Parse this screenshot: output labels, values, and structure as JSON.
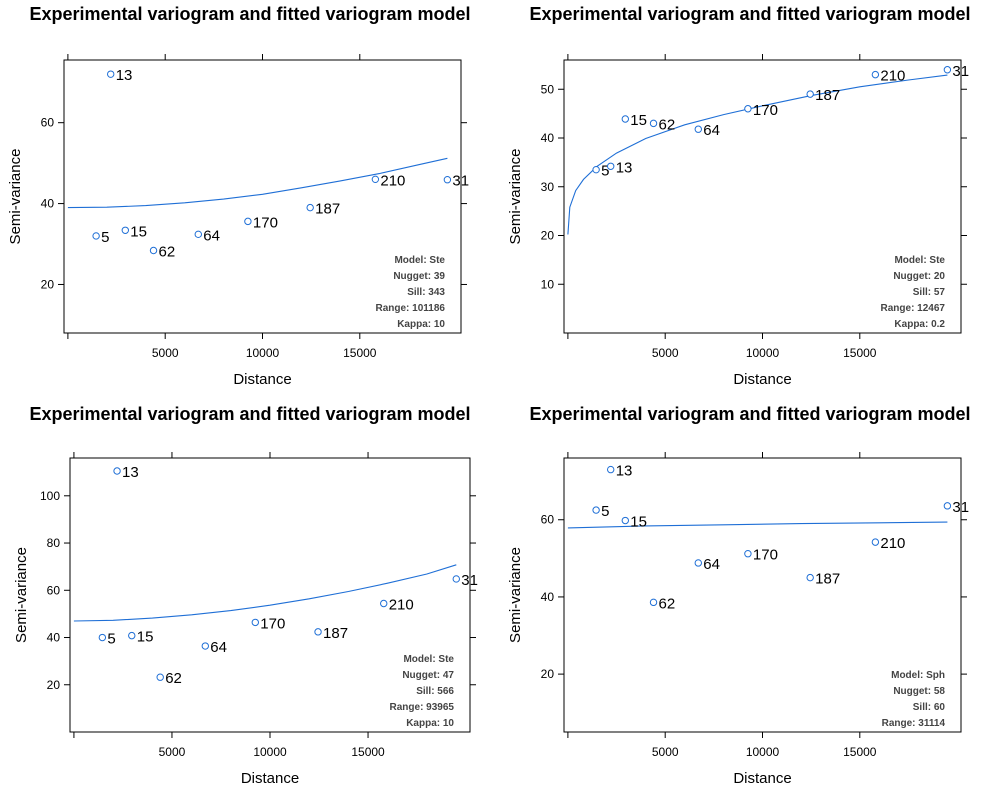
{
  "chart_data": [
    {
      "type": "scatter",
      "title": "Experimental variogram and fitted variogram model",
      "xlabel": "Distance",
      "ylabel": "Semi-variance",
      "xlim": [
        -200,
        20200
      ],
      "ylim": [
        8,
        75.5
      ],
      "xticks": [
        5000,
        10000,
        15000
      ],
      "yticks": [
        20,
        40,
        60
      ],
      "points": [
        {
          "x": 1450,
          "y": 32.0,
          "label": "5"
        },
        {
          "x": 2200,
          "y": 72.0,
          "label": "13"
        },
        {
          "x": 2950,
          "y": 33.4,
          "label": "15"
        },
        {
          "x": 4400,
          "y": 28.4,
          "label": "62"
        },
        {
          "x": 6700,
          "y": 32.4,
          "label": "64"
        },
        {
          "x": 9250,
          "y": 35.6,
          "label": "170"
        },
        {
          "x": 12450,
          "y": 39.0,
          "label": "187"
        },
        {
          "x": 15800,
          "y": 46.0,
          "label": "210"
        },
        {
          "x": 19500,
          "y": 45.9,
          "label": "31"
        }
      ],
      "fitted_curve": {
        "x": [
          1,
          2000,
          4000,
          6000,
          8000,
          10000,
          12000,
          14000,
          16000,
          18000,
          19500
        ],
        "y": [
          39.0,
          39.1,
          39.5,
          40.2,
          41.1,
          42.3,
          43.9,
          45.6,
          47.4,
          49.6,
          51.2
        ]
      },
      "annotations": [
        "Model: Ste",
        "Nugget: 39",
        "Sill: 343",
        "Range: 101186",
        "Kappa: 10"
      ]
    },
    {
      "type": "scatter",
      "title": "Experimental variogram and fitted variogram model",
      "xlabel": "Distance",
      "ylabel": "Semi-variance",
      "xlim": [
        -200,
        20200
      ],
      "ylim": [
        0,
        56
      ],
      "xticks": [
        5000,
        10000,
        15000
      ],
      "yticks": [
        10,
        20,
        30,
        40,
        50
      ],
      "points": [
        {
          "x": 1450,
          "y": 33.5,
          "label": "5"
        },
        {
          "x": 2200,
          "y": 34.2,
          "label": "13"
        },
        {
          "x": 2950,
          "y": 43.9,
          "label": "15"
        },
        {
          "x": 4400,
          "y": 43.0,
          "label": "62"
        },
        {
          "x": 6700,
          "y": 41.8,
          "label": "64"
        },
        {
          "x": 9250,
          "y": 46.0,
          "label": "170"
        },
        {
          "x": 12450,
          "y": 49.0,
          "label": "187"
        },
        {
          "x": 15800,
          "y": 53.0,
          "label": "210"
        },
        {
          "x": 19500,
          "y": 54.0,
          "label": "31"
        }
      ],
      "fitted_curve": {
        "x": [
          1,
          100,
          400,
          800,
          1500,
          2500,
          4000,
          6000,
          8000,
          10000,
          12500,
          15000,
          17500,
          19500
        ],
        "y": [
          20.2,
          25.8,
          29.2,
          31.5,
          34.2,
          36.9,
          39.9,
          42.7,
          44.8,
          46.6,
          48.7,
          50.5,
          51.9,
          52.9
        ]
      },
      "annotations": [
        "Model: Ste",
        "Nugget: 20",
        "Sill: 57",
        "Range: 12467",
        "Kappa: 0.2"
      ]
    },
    {
      "type": "scatter",
      "title": "Experimental variogram and fitted variogram model",
      "xlabel": "Distance",
      "ylabel": "Semi-variance",
      "xlim": [
        -200,
        20200
      ],
      "ylim": [
        0,
        116
      ],
      "xticks": [
        5000,
        10000,
        15000
      ],
      "yticks": [
        20,
        40,
        60,
        80,
        100
      ],
      "points": [
        {
          "x": 1450,
          "y": 40.0,
          "label": "5"
        },
        {
          "x": 2200,
          "y": 110.5,
          "label": "13"
        },
        {
          "x": 2950,
          "y": 40.8,
          "label": "15"
        },
        {
          "x": 4400,
          "y": 23.2,
          "label": "62"
        },
        {
          "x": 6700,
          "y": 36.4,
          "label": "64"
        },
        {
          "x": 9250,
          "y": 46.4,
          "label": "170"
        },
        {
          "x": 12450,
          "y": 42.4,
          "label": "187"
        },
        {
          "x": 15800,
          "y": 54.4,
          "label": "210"
        },
        {
          "x": 19500,
          "y": 64.8,
          "label": "31"
        }
      ],
      "fitted_curve": {
        "x": [
          1,
          2000,
          4000,
          6000,
          8000,
          10000,
          12000,
          14000,
          16000,
          18000,
          19500
        ],
        "y": [
          47.0,
          47.3,
          48.2,
          49.6,
          51.4,
          53.7,
          56.4,
          59.5,
          63.0,
          66.9,
          70.8
        ]
      },
      "annotations": [
        "Model: Ste",
        "Nugget: 47",
        "Sill: 566",
        "Range: 93965",
        "Kappa: 10"
      ]
    },
    {
      "type": "scatter",
      "title": "Experimental variogram and fitted variogram model",
      "xlabel": "Distance",
      "ylabel": "Semi-variance",
      "xlim": [
        -200,
        20200
      ],
      "ylim": [
        5,
        76
      ],
      "xticks": [
        5000,
        10000,
        15000
      ],
      "yticks": [
        20,
        40,
        60
      ],
      "points": [
        {
          "x": 1450,
          "y": 62.5,
          "label": "5"
        },
        {
          "x": 2200,
          "y": 73.0,
          "label": "13"
        },
        {
          "x": 2950,
          "y": 59.8,
          "label": "15"
        },
        {
          "x": 4400,
          "y": 38.6,
          "label": "62"
        },
        {
          "x": 6700,
          "y": 48.8,
          "label": "64"
        },
        {
          "x": 9250,
          "y": 51.2,
          "label": "170"
        },
        {
          "x": 12450,
          "y": 45.0,
          "label": "187"
        },
        {
          "x": 15800,
          "y": 54.2,
          "label": "210"
        },
        {
          "x": 19500,
          "y": 63.6,
          "label": "31"
        }
      ],
      "fitted_curve": {
        "x": [
          1,
          4000,
          8000,
          12000,
          16000,
          19500
        ],
        "y": [
          57.9,
          58.4,
          58.7,
          59.0,
          59.2,
          59.4
        ]
      },
      "annotations": [
        "Model: Sph",
        "Nugget: 58",
        "Sill: 60",
        "Range: 31114"
      ]
    }
  ],
  "colors": {
    "curve": "#1f6fd6",
    "point": "#1f6fd6",
    "axis": "#000000",
    "text": "#000000",
    "annotation": "#444444"
  }
}
